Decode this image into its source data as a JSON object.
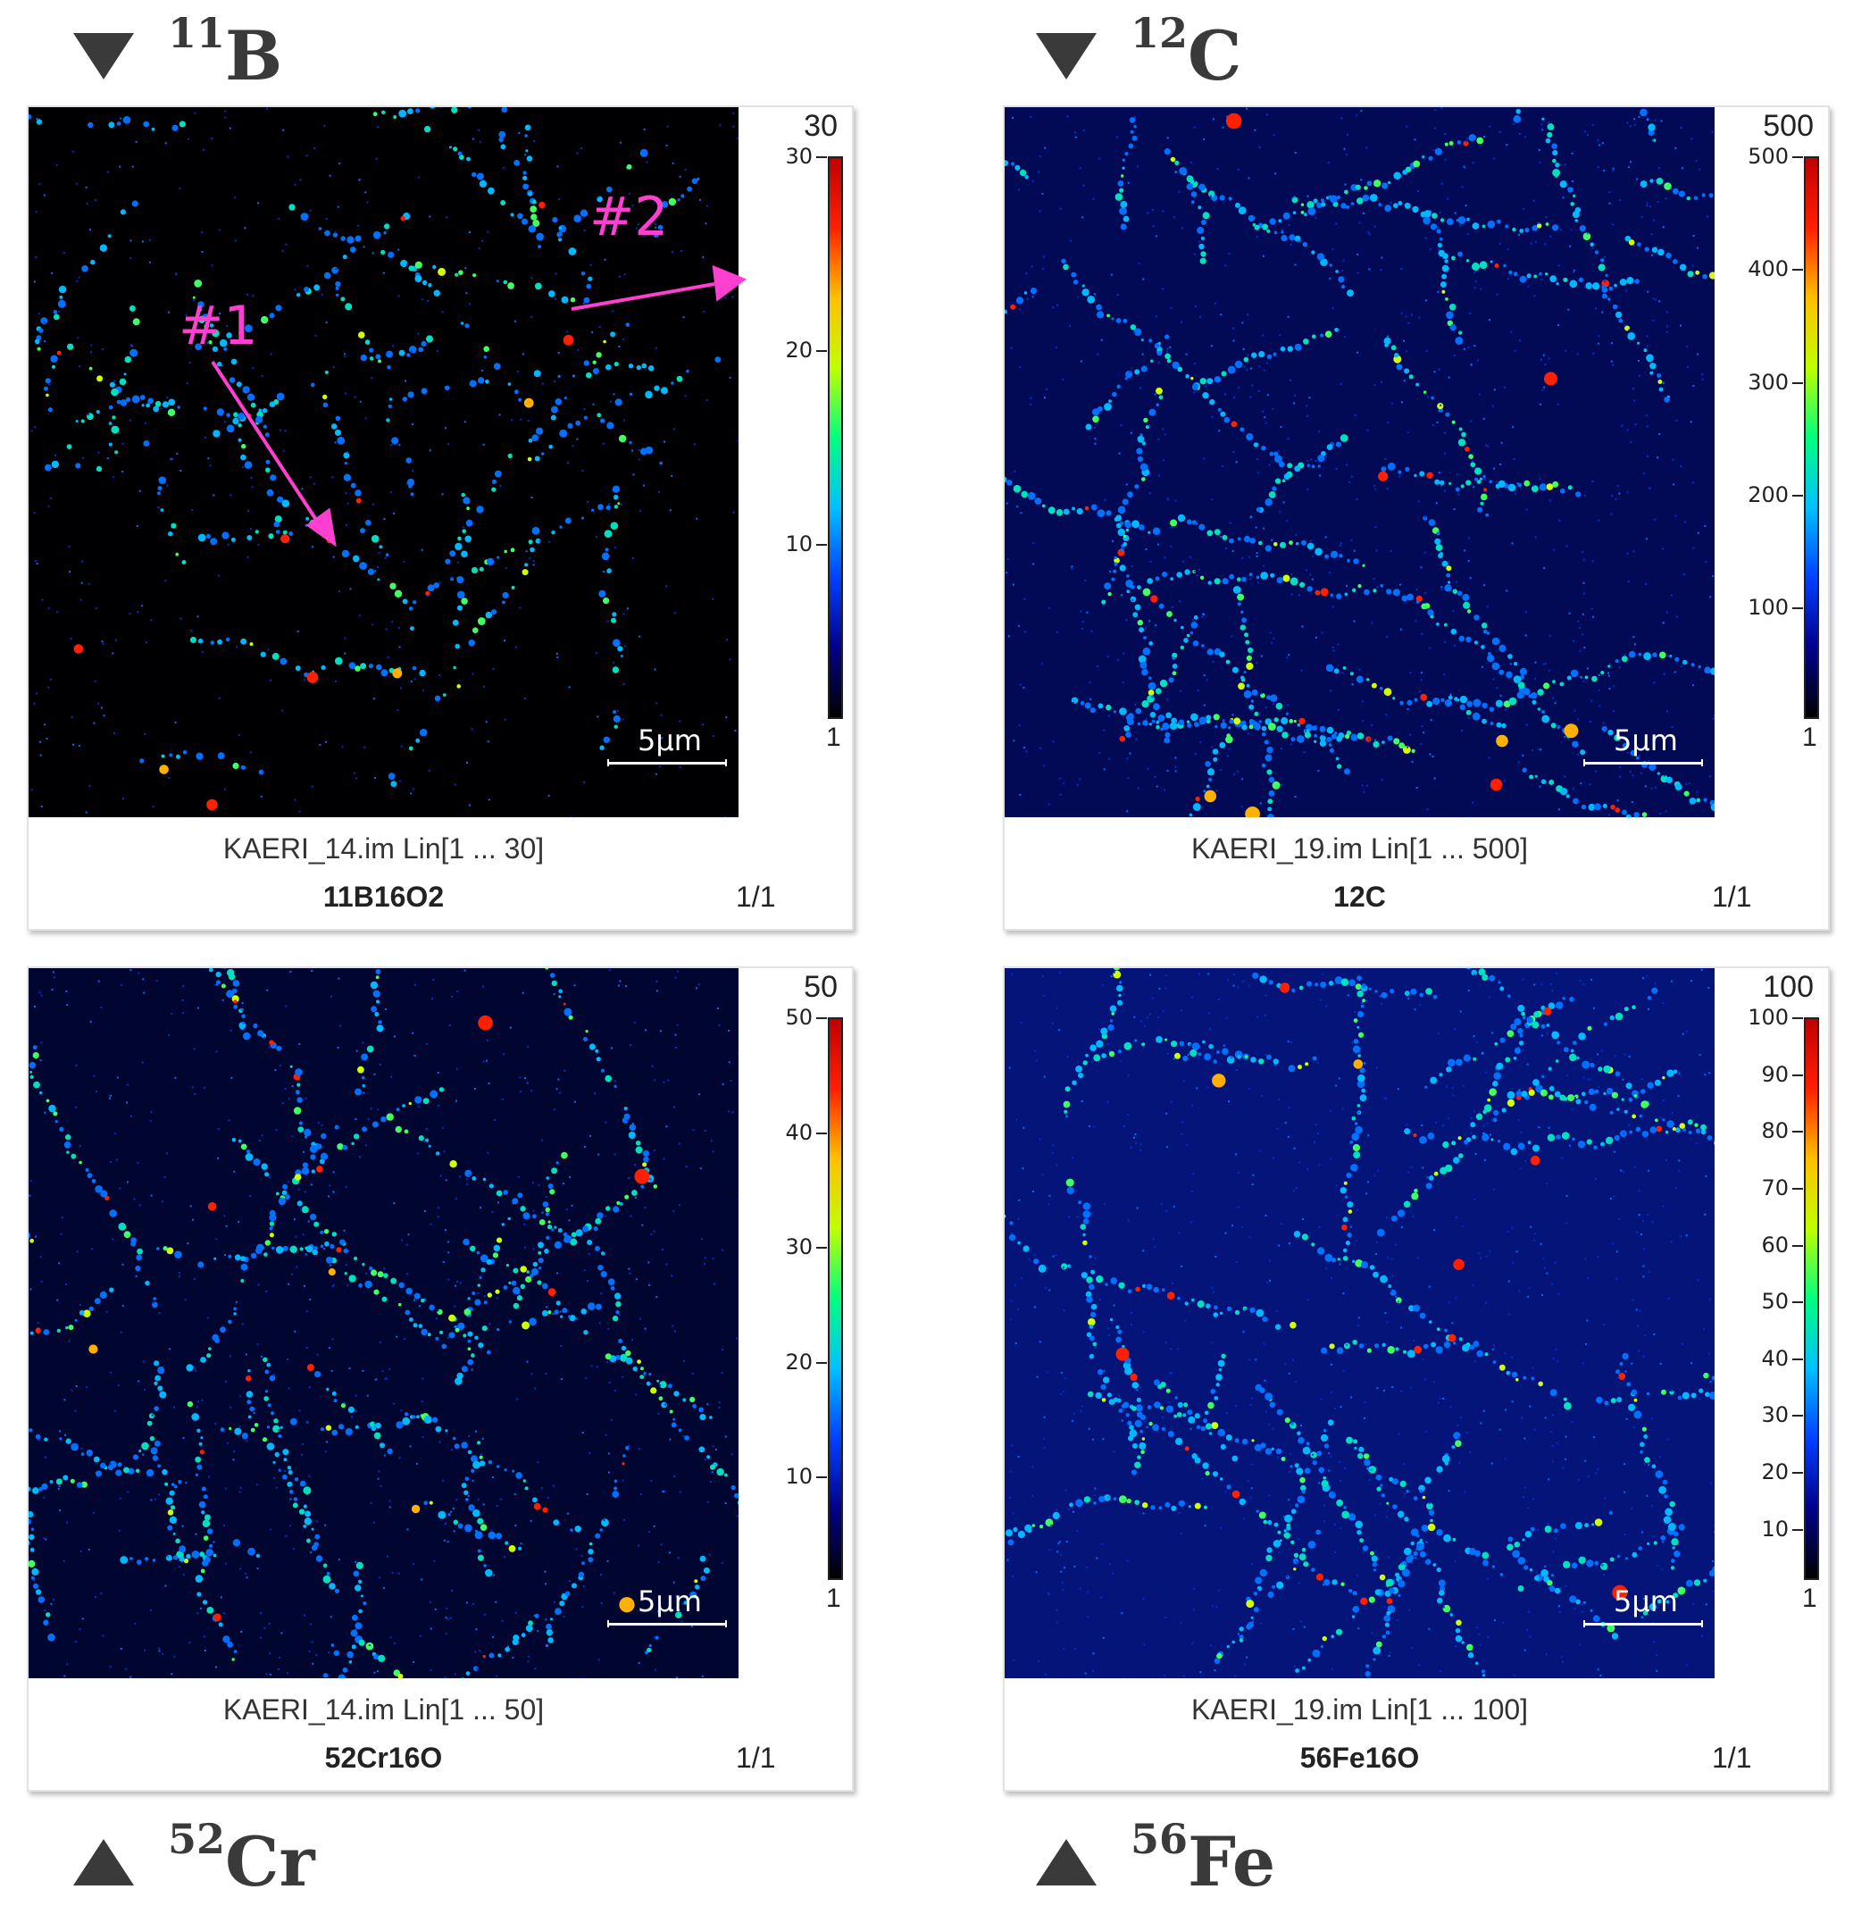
{
  "element_labels": [
    {
      "iso": "11",
      "sym": "B",
      "dir": "down"
    },
    {
      "iso": "12",
      "sym": "C",
      "dir": "down"
    },
    {
      "iso": "52",
      "sym": "Cr",
      "dir": "up"
    },
    {
      "iso": "56",
      "sym": "Fe",
      "dir": "up"
    }
  ],
  "panels": [
    {
      "max": "30",
      "ticks": [
        "30",
        "20",
        "10"
      ],
      "tick_vals": [
        30,
        20,
        10
      ],
      "min": "1",
      "scale_label": "5μm",
      "filename": "KAERI_14.im Lin[1 ... 30]",
      "ion": "11B16O2",
      "frame": "1/1",
      "bg": "#000003",
      "density": 0.55
    },
    {
      "max": "500",
      "ticks": [
        "500",
        "400",
        "300",
        "200",
        "100"
      ],
      "tick_vals": [
        500,
        400,
        300,
        200,
        100
      ],
      "min": "1",
      "scale_label": "5μm",
      "filename": "KAERI_19.im Lin[1 ... 500]",
      "ion": "12C",
      "frame": "1/1",
      "bg": "#020a55",
      "density": 1.0
    },
    {
      "max": "50",
      "ticks": [
        "50",
        "40",
        "30",
        "20",
        "10"
      ],
      "tick_vals": [
        50,
        40,
        30,
        20,
        10
      ],
      "min": "1",
      "scale_label": "5μm",
      "filename": "KAERI_14.im Lin[1 ... 50]",
      "ion": "52Cr16O",
      "frame": "1/1",
      "bg": "#010630",
      "density": 0.85
    },
    {
      "max": "100",
      "ticks": [
        "100",
        "90",
        "80",
        "70",
        "60",
        "50",
        "40",
        "30",
        "20",
        "10"
      ],
      "tick_vals": [
        100,
        90,
        80,
        70,
        60,
        50,
        40,
        30,
        20,
        10
      ],
      "min": "1",
      "scale_label": "5μm",
      "filename": "KAERI_19.im Lin[1 ... 100]",
      "ion": "56Fe16O",
      "frame": "1/1",
      "bg": "#041478",
      "density": 0.9
    }
  ],
  "annotations": {
    "label_1": "#1",
    "label_2": "#2",
    "color": "#ff3fd0"
  },
  "colors": {
    "colormap": [
      "#000000",
      "#00008b",
      "#0040ff",
      "#00c0ff",
      "#00ff80",
      "#c0ff00",
      "#ffc000",
      "#ff2000",
      "#c00000"
    ]
  }
}
